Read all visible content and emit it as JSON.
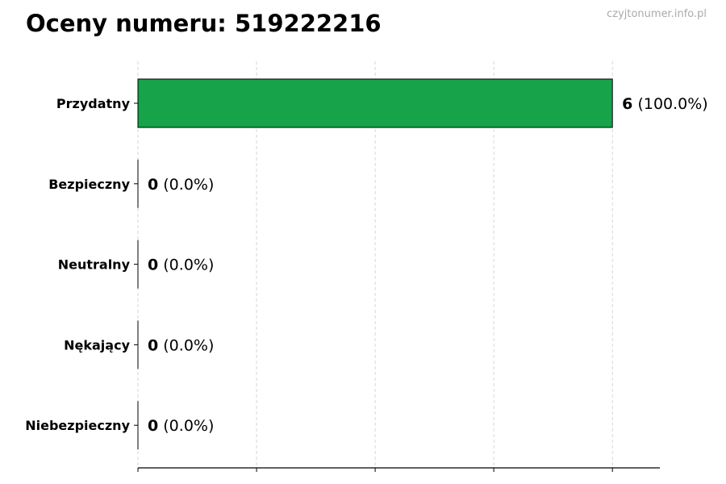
{
  "title": "Oceny numeru: 519222216",
  "watermark": "czyjtonumer.info.pl",
  "chart_data": {
    "type": "bar",
    "orientation": "horizontal",
    "title": "Oceny numeru: 519222216",
    "categories": [
      "Przydatny",
      "Bezpieczny",
      "Neutralny",
      "Nękający",
      "Niebezpieczny"
    ],
    "values": [
      6,
      0,
      0,
      0,
      0
    ],
    "percentages": [
      "100.0%",
      "0.0%",
      "0.0%",
      "0.0%",
      "0.0%"
    ],
    "data_labels": [
      {
        "count": "6",
        "pct": "(100.0%)"
      },
      {
        "count": "0",
        "pct": "(0.0%)"
      },
      {
        "count": "0",
        "pct": "(0.0%)"
      },
      {
        "count": "0",
        "pct": "(0.0%)"
      },
      {
        "count": "0",
        "pct": "(0.0%)"
      }
    ],
    "xlim": [
      0,
      6.6
    ],
    "xticks": [
      0,
      1.5,
      3,
      4.5,
      6
    ],
    "xtick_labels_shown": false,
    "grid": "x, dashed",
    "xlabel": "",
    "ylabel": "",
    "colors": {
      "bar": "#16a34a",
      "edge": "#000000",
      "grid": "#cccccc"
    }
  }
}
